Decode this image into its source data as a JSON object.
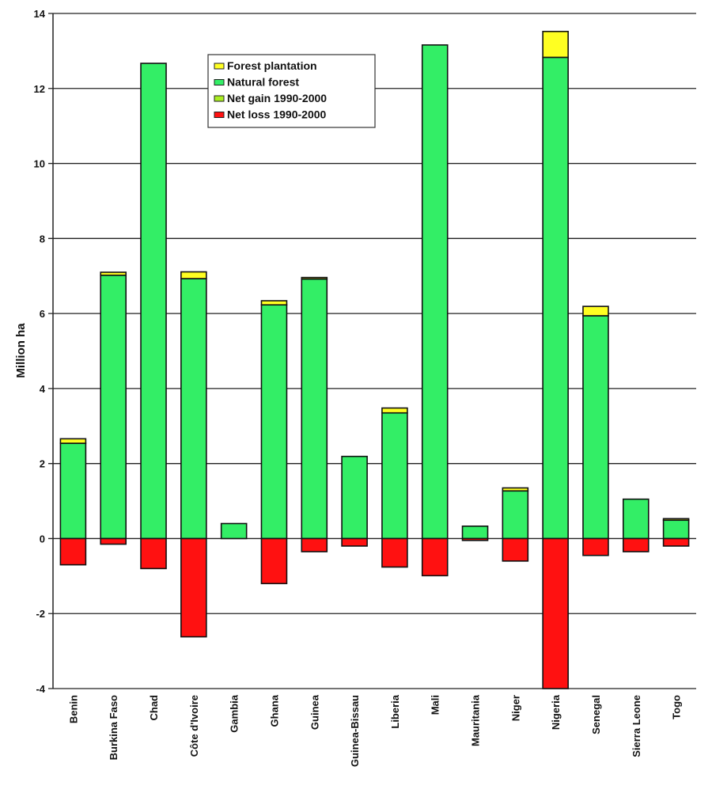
{
  "chart_data": {
    "type": "bar",
    "stacked": true,
    "title": "",
    "xlabel": "",
    "ylabel": "Million ha",
    "ylim": [
      -4,
      14
    ],
    "yticks": [
      -4,
      -2,
      0,
      2,
      4,
      6,
      8,
      10,
      12,
      14
    ],
    "grid": true,
    "legend_position": "top-center",
    "categories": [
      "Benin",
      "Burkina Faso",
      "Chad",
      "Côte d'Ivoire",
      "Gambia",
      "Ghana",
      "Guinea",
      "Guinea-Bissau",
      "Liberia",
      "Mali",
      "Mauritania",
      "Niger",
      "Nigeria",
      "Senegal",
      "Sierra Leone",
      "Togo"
    ],
    "series": [
      {
        "name": "Forest plantation",
        "color": "#ffff22",
        "values": [
          0.12,
          0.08,
          0,
          0.18,
          0,
          0.11,
          0.04,
          0,
          0.13,
          0,
          0,
          0.08,
          0.69,
          0.25,
          0,
          0.04
        ]
      },
      {
        "name": "Natural forest",
        "color": "#33ee66",
        "values": [
          2.54,
          7.02,
          12.67,
          6.93,
          0.4,
          6.23,
          6.92,
          2.19,
          3.35,
          13.16,
          0.33,
          1.27,
          12.83,
          5.94,
          1.05,
          0.49
        ]
      },
      {
        "name": "Net gain 1990-2000",
        "color": "#aaee22",
        "values": [
          0,
          0,
          0,
          0,
          0,
          0,
          0,
          0,
          0,
          0,
          0,
          0,
          0,
          0,
          0,
          0
        ]
      },
      {
        "name": "Net loss 1990-2000",
        "color": "#ff1111",
        "values": [
          -0.7,
          -0.15,
          -0.8,
          -2.62,
          0,
          -1.2,
          -0.35,
          -0.2,
          -0.76,
          -0.99,
          -0.05,
          -0.6,
          -4.0,
          -0.45,
          -0.35,
          -0.2
        ]
      }
    ]
  }
}
